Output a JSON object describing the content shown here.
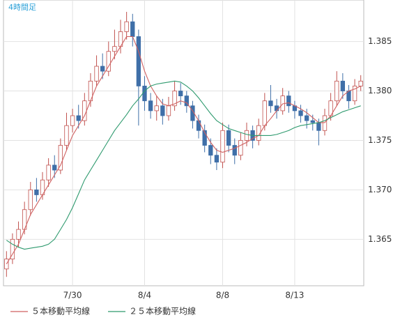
{
  "chart_data": {
    "type": "candlestick",
    "title": "4時間足",
    "categories": [
      null,
      null,
      null,
      null,
      null,
      null,
      null,
      null,
      null,
      null,
      null,
      "7/30",
      null,
      null,
      null,
      null,
      null,
      null,
      null,
      null,
      null,
      null,
      null,
      "8/4",
      null,
      null,
      null,
      null,
      null,
      null,
      null,
      null,
      null,
      null,
      null,
      null,
      "8/8",
      null,
      null,
      null,
      null,
      null,
      null,
      null,
      null,
      null,
      null,
      null,
      "8/13",
      null,
      null,
      null,
      null,
      null,
      null,
      null,
      null,
      null,
      null,
      null
    ],
    "open": [
      1.362,
      1.363,
      1.365,
      1.366,
      1.368,
      1.37,
      1.3695,
      1.371,
      1.3725,
      1.372,
      1.3745,
      1.3765,
      1.3775,
      1.377,
      1.379,
      1.381,
      1.3825,
      1.382,
      1.384,
      1.3845,
      1.386,
      1.387,
      1.3855,
      1.3805,
      1.379,
      1.378,
      1.3785,
      1.3775,
      1.3785,
      1.38,
      1.3795,
      1.3785,
      1.377,
      1.376,
      1.3745,
      1.3735,
      1.3728,
      1.376,
      1.3745,
      1.3735,
      1.375,
      1.376,
      1.375,
      1.3765,
      1.379,
      1.3785,
      1.378,
      1.3795,
      1.3785,
      1.378,
      1.3775,
      1.377,
      1.3768,
      1.376,
      1.3775,
      1.379,
      1.381,
      1.38,
      1.379,
      1.3805
    ],
    "high": [
      1.3638,
      1.3656,
      1.3668,
      1.3688,
      1.3708,
      1.3712,
      1.3718,
      1.3732,
      1.3735,
      1.3752,
      1.3778,
      1.3782,
      1.3786,
      1.3798,
      1.3818,
      1.3836,
      1.3838,
      1.385,
      1.3862,
      1.3872,
      1.388,
      1.3878,
      1.3862,
      1.3815,
      1.3798,
      1.3795,
      1.3792,
      1.3794,
      1.381,
      1.3808,
      1.38,
      1.379,
      1.3776,
      1.3766,
      1.3752,
      1.3742,
      1.3768,
      1.3766,
      1.3752,
      1.3758,
      1.3768,
      1.3765,
      1.3772,
      1.3798,
      1.3806,
      1.3792,
      1.3803,
      1.38,
      1.379,
      1.3786,
      1.3782,
      1.3776,
      1.3772,
      1.3782,
      1.3798,
      1.382,
      1.3818,
      1.3806,
      1.3812,
      1.3816
    ],
    "low": [
      1.3612,
      1.3625,
      1.3642,
      1.3655,
      1.3674,
      1.3688,
      1.369,
      1.3703,
      1.3712,
      1.3716,
      1.374,
      1.3758,
      1.3762,
      1.3765,
      1.3784,
      1.3805,
      1.3812,
      1.3815,
      1.3832,
      1.3838,
      1.3852,
      1.3845,
      1.3765,
      1.378,
      1.3772,
      1.377,
      1.3766,
      1.377,
      1.378,
      1.3786,
      1.3778,
      1.3762,
      1.3752,
      1.3738,
      1.3726,
      1.372,
      1.3722,
      1.3738,
      1.3726,
      1.373,
      1.3744,
      1.3742,
      1.3745,
      1.376,
      1.3778,
      1.3772,
      1.3776,
      1.3778,
      1.3772,
      1.3768,
      1.3762,
      1.376,
      1.3745,
      1.3755,
      1.377,
      1.3785,
      1.3792,
      1.3782,
      1.3786,
      1.38
    ],
    "close": [
      1.363,
      1.365,
      1.366,
      1.368,
      1.37,
      1.3695,
      1.371,
      1.3725,
      1.372,
      1.3745,
      1.3765,
      1.3775,
      1.377,
      1.379,
      1.381,
      1.3825,
      1.382,
      1.384,
      1.3845,
      1.386,
      1.387,
      1.3855,
      1.3805,
      1.379,
      1.378,
      1.3785,
      1.3775,
      1.3785,
      1.38,
      1.3795,
      1.3785,
      1.377,
      1.376,
      1.3745,
      1.3735,
      1.3728,
      1.376,
      1.3745,
      1.3735,
      1.375,
      1.376,
      1.375,
      1.3765,
      1.379,
      1.3785,
      1.378,
      1.3795,
      1.3785,
      1.378,
      1.3775,
      1.377,
      1.3768,
      1.376,
      1.3775,
      1.379,
      1.381,
      1.38,
      1.379,
      1.3805,
      1.381
    ],
    "up_color": "#c0504d",
    "down_color": "#3f6fa8",
    "series": [
      {
        "name": "５本移動平均線",
        "color": "#d06060",
        "values": [
          1.3625,
          1.3635,
          1.3645,
          1.366,
          1.3675,
          1.3685,
          1.3695,
          1.3705,
          1.3715,
          1.3725,
          1.374,
          1.3755,
          1.3765,
          1.3775,
          1.379,
          1.3805,
          1.3815,
          1.3825,
          1.3835,
          1.3845,
          1.3855,
          1.3855,
          1.384,
          1.382,
          1.3805,
          1.3795,
          1.3787,
          1.3785,
          1.3787,
          1.379,
          1.3788,
          1.378,
          1.377,
          1.3758,
          1.3748,
          1.374,
          1.3738,
          1.374,
          1.3742,
          1.3745,
          1.3748,
          1.3752,
          1.3755,
          1.3765,
          1.3772,
          1.378,
          1.3787,
          1.3788,
          1.3785,
          1.3782,
          1.3778,
          1.3773,
          1.3768,
          1.3768,
          1.3775,
          1.3785,
          1.3795,
          1.38,
          1.3802,
          1.3805
        ]
      },
      {
        "name": "２５本移動平均線",
        "color": "#2e9a6e",
        "values": [
          1.3649,
          1.3645,
          1.3642,
          1.364,
          1.3641,
          1.3642,
          1.3643,
          1.3645,
          1.365,
          1.366,
          1.367,
          1.3682,
          1.3696,
          1.371,
          1.372,
          1.373,
          1.374,
          1.375,
          1.376,
          1.3768,
          1.3776,
          1.3785,
          1.3792,
          1.38,
          1.3805,
          1.3807,
          1.3808,
          1.3809,
          1.381,
          1.3809,
          1.3805,
          1.38,
          1.3793,
          1.3785,
          1.3777,
          1.377,
          1.3766,
          1.3762,
          1.376,
          1.3758,
          1.3756,
          1.3755,
          1.3755,
          1.3755,
          1.3755,
          1.3756,
          1.3758,
          1.376,
          1.3763,
          1.3765,
          1.3766,
          1.3767,
          1.3768,
          1.377,
          1.3773,
          1.3776,
          1.3779,
          1.3781,
          1.3783,
          1.3785
        ]
      }
    ],
    "ylim": [
      1.3603,
      1.3892
    ],
    "yticks": [
      1.365,
      {
        "value": 1.37,
        "label": "1.370"
      },
      1.375,
      {
        "value": 1.38,
        "label": "1.380"
      },
      1.385
    ],
    "grid": true
  }
}
